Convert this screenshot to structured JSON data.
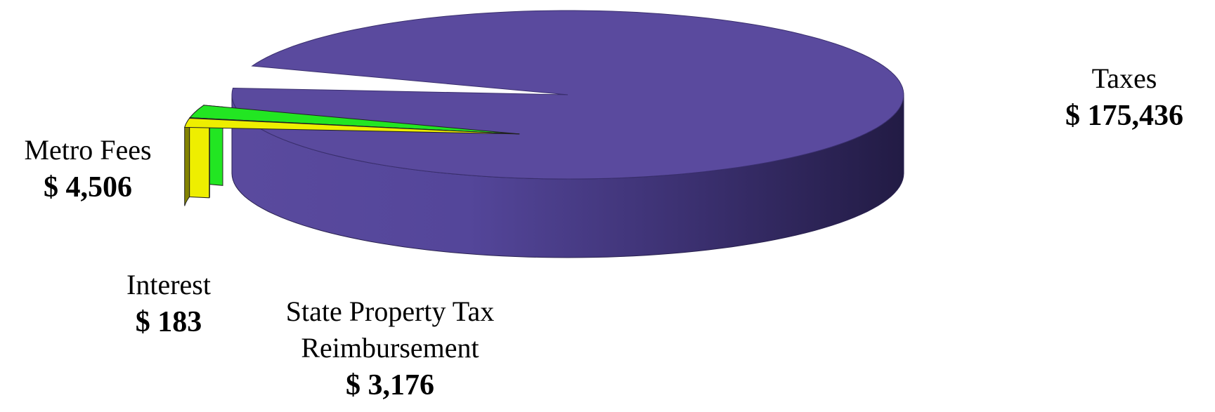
{
  "chart_data": {
    "type": "pie",
    "style": "3d",
    "slices": [
      {
        "label": "Taxes",
        "value_text": "$ 175,436",
        "value": 175436,
        "color": "#5a4a9e"
      },
      {
        "label": "Metro Fees",
        "value_text": "$ 4,506",
        "value": 4506,
        "color": "#22e622"
      },
      {
        "label": "Interest",
        "value_text": "$ 183",
        "value": 183,
        "color": "#6a1a6a"
      },
      {
        "label": "State Property Tax Reimbursement",
        "label_lines": [
          "State Property Tax",
          "Reimbursement"
        ],
        "value_text": "$ 3,176",
        "value": 3176,
        "color": "#eeee00"
      }
    ]
  }
}
